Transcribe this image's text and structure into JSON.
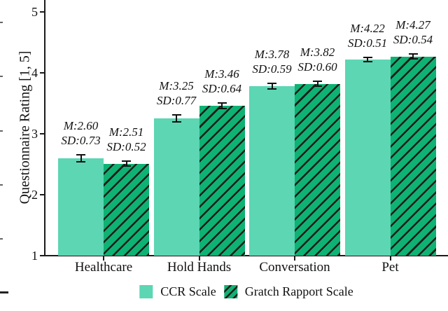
{
  "figure": {
    "background": "#ffffff",
    "text_color": "#111111",
    "axis_color": "#1a1a1a"
  },
  "chart_data": {
    "type": "bar",
    "title": "",
    "xlabel": "",
    "ylabel": "Questionnaire Rating [1, 5]",
    "ylim": [
      1,
      5
    ],
    "yticks": [
      1,
      2,
      3,
      4,
      5
    ],
    "grid": false,
    "legend_position": "bottom-center",
    "categories": [
      "Healthcare",
      "Hold Hands",
      "Conversation",
      "Pet"
    ],
    "label_prefixes": {
      "mean": "M:",
      "sd": "SD:"
    },
    "series": [
      {
        "name": "CCR Scale",
        "color": "#5cd6b3",
        "hatch": false,
        "values": [
          2.6,
          3.25,
          3.78,
          4.22
        ],
        "sd": [
          0.73,
          0.77,
          0.59,
          0.51
        ]
      },
      {
        "name": "Gratch Rapport Scale",
        "color": "#0eb273",
        "hatch": true,
        "values": [
          2.51,
          3.46,
          3.82,
          4.27
        ],
        "sd": [
          0.52,
          0.64,
          0.6,
          0.54
        ]
      }
    ]
  }
}
